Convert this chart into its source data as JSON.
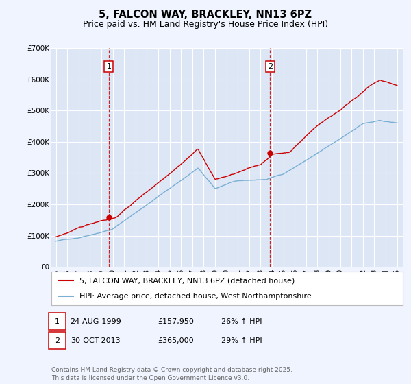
{
  "title": "5, FALCON WAY, BRACKLEY, NN13 6PZ",
  "subtitle": "Price paid vs. HM Land Registry's House Price Index (HPI)",
  "ylim": [
    0,
    700000
  ],
  "yticks": [
    0,
    100000,
    200000,
    300000,
    400000,
    500000,
    600000,
    700000
  ],
  "ytick_labels": [
    "£0",
    "£100K",
    "£200K",
    "£300K",
    "£400K",
    "£500K",
    "£600K",
    "£700K"
  ],
  "xlim": [
    1994.6,
    2025.5
  ],
  "xticks": [
    1995,
    1996,
    1997,
    1998,
    1999,
    2000,
    2001,
    2002,
    2003,
    2004,
    2005,
    2006,
    2007,
    2008,
    2009,
    2010,
    2011,
    2012,
    2013,
    2014,
    2015,
    2016,
    2017,
    2018,
    2019,
    2020,
    2021,
    2022,
    2023,
    2024,
    2025
  ],
  "background_color": "#f0f4ff",
  "plot_bg": "#dde6f5",
  "grid_color": "#ffffff",
  "red_line_color": "#cc0000",
  "blue_line_color": "#7ab0d4",
  "marker1_x": 1999.65,
  "marker1_y": 157950,
  "marker2_x": 2013.83,
  "marker2_y": 365000,
  "vline1_x": 1999.65,
  "vline2_x": 2013.83,
  "legend_label_red": "5, FALCON WAY, BRACKLEY, NN13 6PZ (detached house)",
  "legend_label_blue": "HPI: Average price, detached house, West Northamptonshire",
  "row1_num": "1",
  "row1_date": "24-AUG-1999",
  "row1_price": "£157,950",
  "row1_hpi": "26% ↑ HPI",
  "row2_num": "2",
  "row2_date": "30-OCT-2013",
  "row2_price": "£365,000",
  "row2_hpi": "29% ↑ HPI",
  "footer": "Contains HM Land Registry data © Crown copyright and database right 2025.\nThis data is licensed under the Open Government Licence v3.0.",
  "title_fontsize": 10.5,
  "subtitle_fontsize": 9,
  "tick_fontsize": 7.5,
  "legend_fontsize": 8,
  "table_fontsize": 8,
  "footer_fontsize": 6.5
}
